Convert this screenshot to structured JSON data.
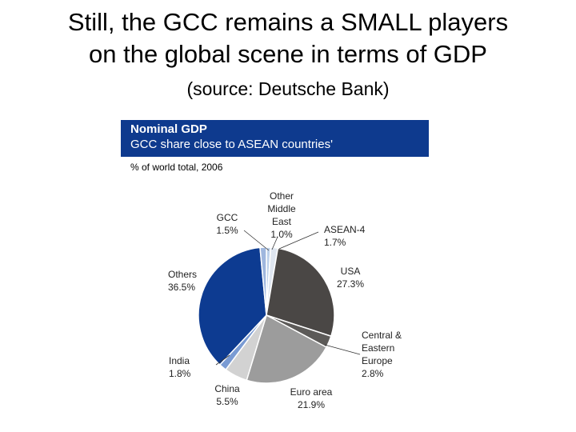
{
  "slide": {
    "title_line1": "Still, the GCC remains a SMALL players",
    "title_line2": "on the global scene in terms of GDP",
    "subtitle": "(source: Deutsche Bank)"
  },
  "chart_data": {
    "type": "pie",
    "title": "Nominal GDP",
    "subtitle": "GCC share close to ASEAN countries'",
    "note": "% of world total, 2006",
    "unit": "%",
    "slices": [
      {
        "name": "Other Middle East",
        "value": 1.0,
        "label_lines": [
          "Other",
          "Middle",
          "East",
          "1.0%"
        ],
        "color": "#bcd0ea"
      },
      {
        "name": "ASEAN-4",
        "value": 1.7,
        "label_lines": [
          "ASEAN-4",
          "1.7%"
        ],
        "color": "#dfe6f0"
      },
      {
        "name": "USA",
        "value": 27.3,
        "label_lines": [
          "USA",
          "27.3%"
        ],
        "color": "#4a4745"
      },
      {
        "name": "Central & Eastern Europe",
        "value": 2.8,
        "label_lines": [
          "Central &",
          "Eastern",
          "Europe",
          "2.8%"
        ],
        "color": "#5c5a58"
      },
      {
        "name": "Euro area",
        "value": 21.9,
        "label_lines": [
          "Euro area",
          "21.9%"
        ],
        "color": "#9c9c9c"
      },
      {
        "name": "China",
        "value": 5.5,
        "label_lines": [
          "China",
          "5.5%"
        ],
        "color": "#d2d2d2"
      },
      {
        "name": "India",
        "value": 1.8,
        "label_lines": [
          "India",
          "1.8%"
        ],
        "color": "#7a9bd3"
      },
      {
        "name": "Others",
        "value": 36.5,
        "label_lines": [
          "Others",
          "36.5%"
        ],
        "color": "#0d3b91"
      },
      {
        "name": "GCC",
        "value": 1.5,
        "label_lines": [
          "GCC",
          "1.5%"
        ],
        "color": "#9fb7de"
      }
    ]
  }
}
